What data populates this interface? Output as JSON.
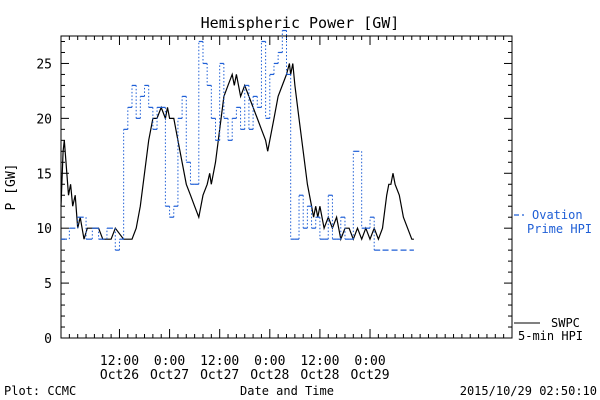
{
  "chart_data": {
    "type": "line",
    "title": "Hemispheric Power [GW]",
    "xlabel": "Date and Time",
    "ylabel": "P [GW]",
    "xlim": [
      0,
      108
    ],
    "ylim": [
      0,
      27.5
    ],
    "y_ticks": [
      0,
      5,
      10,
      15,
      20,
      25
    ],
    "x_ticks": [
      {
        "x": 14,
        "line1": "12:00",
        "line2": "Oct26"
      },
      {
        "x": 26,
        "line1": "0:00",
        "line2": "Oct27"
      },
      {
        "x": 38,
        "line1": "12:00",
        "line2": "Oct27"
      },
      {
        "x": 50,
        "line1": "0:00",
        "line2": "Oct28"
      },
      {
        "x": 62,
        "line1": "12:00",
        "line2": "Oct28"
      },
      {
        "x": 74,
        "line1": "0:00",
        "line2": "Oct29"
      }
    ],
    "footer_left": "Plot: CCMC",
    "footer_right": "2015/10/29 02:50:10",
    "series": [
      {
        "name": "SWPC 5-min HPI",
        "legend_line1": "SWPC",
        "legend_line2": "5-min HPI",
        "color": "#000000",
        "style": "solid",
        "points": [
          [
            0,
            12
          ],
          [
            0.5,
            17
          ],
          [
            0.8,
            18
          ],
          [
            1.2,
            16
          ],
          [
            1.8,
            13
          ],
          [
            2.3,
            14
          ],
          [
            2.8,
            12
          ],
          [
            3.4,
            13
          ],
          [
            4,
            10
          ],
          [
            4.6,
            11
          ],
          [
            5.5,
            9
          ],
          [
            6.3,
            10
          ],
          [
            7.5,
            10
          ],
          [
            9,
            10
          ],
          [
            10,
            9
          ],
          [
            12,
            9
          ],
          [
            13,
            10
          ],
          [
            15,
            9
          ],
          [
            17,
            9
          ],
          [
            18,
            10
          ],
          [
            19,
            12
          ],
          [
            20,
            15
          ],
          [
            21,
            18
          ],
          [
            22,
            20
          ],
          [
            23,
            20
          ],
          [
            24,
            21
          ],
          [
            25,
            20
          ],
          [
            25.5,
            21
          ],
          [
            26,
            20
          ],
          [
            27,
            20
          ],
          [
            28,
            18
          ],
          [
            29,
            16
          ],
          [
            30,
            14
          ],
          [
            31,
            13
          ],
          [
            32,
            12
          ],
          [
            33,
            11
          ],
          [
            34,
            13
          ],
          [
            35,
            14
          ],
          [
            35.6,
            15
          ],
          [
            36,
            14
          ],
          [
            37,
            16
          ],
          [
            38,
            19
          ],
          [
            39,
            22
          ],
          [
            40,
            23
          ],
          [
            41,
            24
          ],
          [
            41.5,
            23
          ],
          [
            42,
            24
          ],
          [
            43,
            22
          ],
          [
            44,
            23
          ],
          [
            45,
            22
          ],
          [
            46,
            21
          ],
          [
            47,
            20
          ],
          [
            48,
            19
          ],
          [
            49,
            18
          ],
          [
            49.5,
            17
          ],
          [
            50,
            18
          ],
          [
            51,
            20
          ],
          [
            52,
            22
          ],
          [
            53,
            23
          ],
          [
            54,
            24
          ],
          [
            54.7,
            25
          ],
          [
            55,
            24
          ],
          [
            55.5,
            25
          ],
          [
            56,
            23
          ],
          [
            57,
            20
          ],
          [
            58,
            17
          ],
          [
            59,
            14
          ],
          [
            60,
            12
          ],
          [
            60.5,
            11
          ],
          [
            61,
            12
          ],
          [
            61.5,
            11
          ],
          [
            62,
            12
          ],
          [
            63,
            10
          ],
          [
            64,
            11
          ],
          [
            65,
            10
          ],
          [
            66,
            11
          ],
          [
            66.5,
            10
          ],
          [
            67,
            9
          ],
          [
            68,
            10
          ],
          [
            69,
            10
          ],
          [
            70,
            9
          ],
          [
            71,
            10
          ],
          [
            72,
            9
          ],
          [
            73,
            10
          ],
          [
            74,
            9
          ],
          [
            75,
            10
          ],
          [
            76,
            9
          ],
          [
            77,
            10
          ],
          [
            78,
            13
          ],
          [
            78.5,
            14
          ],
          [
            79,
            14
          ],
          [
            79.5,
            15
          ],
          [
            80,
            14
          ],
          [
            81,
            13
          ],
          [
            82,
            11
          ],
          [
            83,
            10
          ],
          [
            84,
            9
          ],
          [
            84.5,
            9
          ]
        ]
      },
      {
        "name": "Ovation Prime HPI",
        "legend_line1": "Ovation",
        "legend_line2": "Prime HPI",
        "color": "#1f5fd6",
        "style": "dashed-step",
        "points": [
          [
            0,
            9
          ],
          [
            2,
            10
          ],
          [
            4,
            11
          ],
          [
            6,
            9
          ],
          [
            7.5,
            10
          ],
          [
            9,
            9
          ],
          [
            11,
            10
          ],
          [
            13,
            8
          ],
          [
            14,
            9
          ],
          [
            15,
            19
          ],
          [
            16,
            21
          ],
          [
            17,
            23
          ],
          [
            18,
            20
          ],
          [
            19,
            22
          ],
          [
            20,
            23
          ],
          [
            21,
            21
          ],
          [
            22,
            19
          ],
          [
            23,
            21
          ],
          [
            24,
            21
          ],
          [
            25,
            12
          ],
          [
            26,
            11
          ],
          [
            27,
            12
          ],
          [
            28,
            20
          ],
          [
            29,
            22
          ],
          [
            30,
            16
          ],
          [
            31,
            14
          ],
          [
            32,
            14
          ],
          [
            33,
            27
          ],
          [
            34,
            25
          ],
          [
            35,
            23
          ],
          [
            36,
            20
          ],
          [
            37,
            18
          ],
          [
            38,
            25
          ],
          [
            39,
            20
          ],
          [
            40,
            18
          ],
          [
            41,
            20
          ],
          [
            42,
            21
          ],
          [
            43,
            19
          ],
          [
            44,
            23
          ],
          [
            45,
            19
          ],
          [
            46,
            22
          ],
          [
            47,
            21
          ],
          [
            48,
            27
          ],
          [
            49,
            20
          ],
          [
            50,
            24
          ],
          [
            51,
            25
          ],
          [
            52,
            26
          ],
          [
            53,
            28
          ],
          [
            54,
            24
          ],
          [
            55,
            9
          ],
          [
            56,
            9
          ],
          [
            57,
            13
          ],
          [
            58,
            10
          ],
          [
            59,
            12
          ],
          [
            60,
            10
          ],
          [
            61,
            11
          ],
          [
            62,
            9
          ],
          [
            63,
            9
          ],
          [
            64,
            13
          ],
          [
            65,
            9
          ],
          [
            66,
            9
          ],
          [
            67,
            11
          ],
          [
            68,
            9
          ],
          [
            69,
            9
          ],
          [
            70,
            17
          ],
          [
            72,
            10
          ],
          [
            73,
            10
          ],
          [
            74,
            11
          ],
          [
            75,
            8
          ],
          [
            77,
            8
          ],
          [
            84.5,
            8
          ]
        ]
      }
    ]
  }
}
